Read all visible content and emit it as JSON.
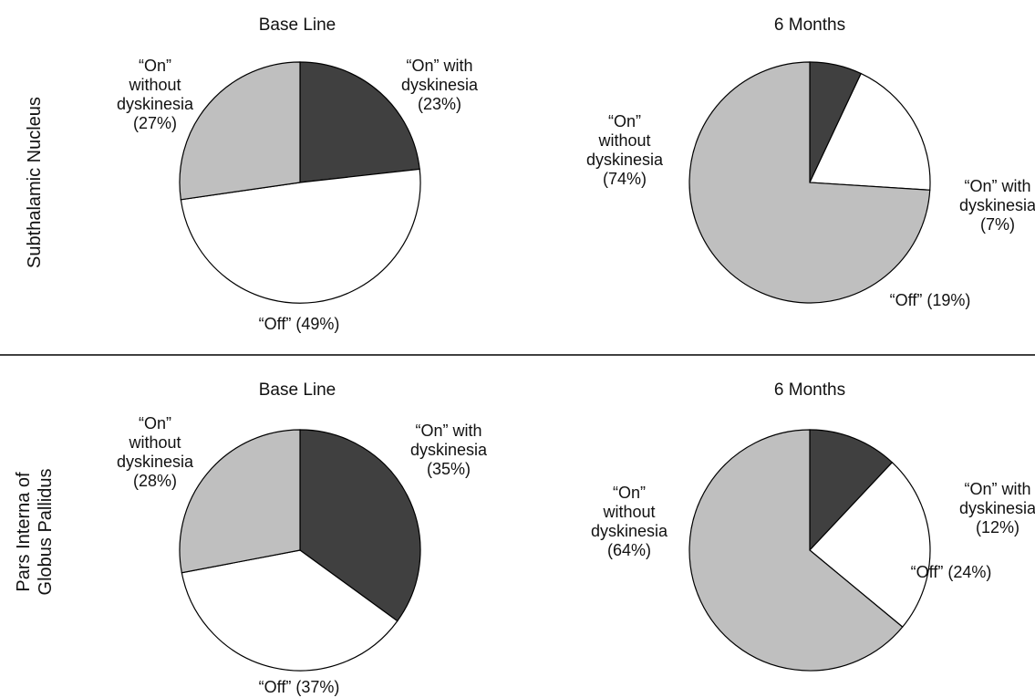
{
  "colors": {
    "on_with": "#404040",
    "on_without": "#bfbfbf",
    "off": "#ffffff",
    "stroke": "#000000"
  },
  "rows": [
    {
      "label_lines": [
        "Subthalamic Nucleus"
      ]
    },
    {
      "label_lines": [
        "Pars Interna of",
        "Globus Pallidus"
      ]
    }
  ],
  "chart_data": [
    {
      "type": "pie",
      "title": "Base Line",
      "row_label": "Subthalamic Nucleus",
      "slices": [
        {
          "key": "on_with",
          "lines": [
            "“On” with",
            "dyskinesia",
            "(23%)"
          ],
          "value": 23
        },
        {
          "key": "off",
          "lines": [
            "“Off” (49%)"
          ],
          "value": 49
        },
        {
          "key": "on_without",
          "lines": [
            "“On”",
            "without",
            "dyskinesia",
            "(27%)"
          ],
          "value": 27
        }
      ]
    },
    {
      "type": "pie",
      "title": "6 Months",
      "row_label": "Subthalamic Nucleus",
      "slices": [
        {
          "key": "on_with",
          "lines": [
            "“On” with",
            "dyskinesia",
            "(7%)"
          ],
          "value": 7
        },
        {
          "key": "off",
          "lines": [
            "“Off” (19%)"
          ],
          "value": 19
        },
        {
          "key": "on_without",
          "lines": [
            "“On”",
            "without",
            "dyskinesia",
            "(74%)"
          ],
          "value": 74
        }
      ]
    },
    {
      "type": "pie",
      "title": "Base Line",
      "row_label": "Pars Interna of Globus Pallidus",
      "slices": [
        {
          "key": "on_with",
          "lines": [
            "“On” with",
            "dyskinesia",
            "(35%)"
          ],
          "value": 35
        },
        {
          "key": "off",
          "lines": [
            "“Off” (37%)"
          ],
          "value": 37
        },
        {
          "key": "on_without",
          "lines": [
            "“On”",
            "without",
            "dyskinesia",
            "(28%)"
          ],
          "value": 28
        }
      ]
    },
    {
      "type": "pie",
      "title": "6 Months",
      "row_label": "Pars Interna of Globus Pallidus",
      "slices": [
        {
          "key": "on_with",
          "lines": [
            "“On” with",
            "dyskinesia",
            "(12%)"
          ],
          "value": 12
        },
        {
          "key": "off",
          "lines": [
            "“Off” (24%)"
          ],
          "value": 24
        },
        {
          "key": "on_without",
          "lines": [
            "“On”",
            "without",
            "dyskinesia",
            "(64%)"
          ],
          "value": 64
        }
      ]
    }
  ]
}
